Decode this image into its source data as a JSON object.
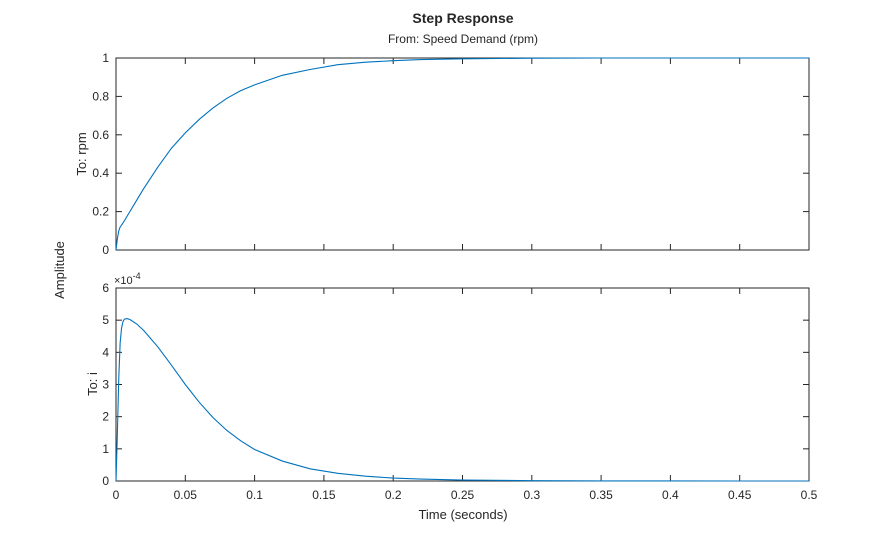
{
  "chart_data": {
    "type": "line",
    "title": "Step Response",
    "subtitle": "From: Speed Demand (rpm)",
    "xlabel": "Time (seconds)",
    "ylabel": "Amplitude",
    "xlim": [
      0,
      0.5
    ],
    "xticks": [
      "0",
      "0.05",
      "0.1",
      "0.15",
      "0.2",
      "0.25",
      "0.3",
      "0.35",
      "0.4",
      "0.45",
      "0.5"
    ],
    "grid": false,
    "subplots": [
      {
        "ylabel": "To: rpm",
        "ylim": [
          0,
          1
        ],
        "yticks": [
          "0",
          "0.2",
          "0.4",
          "0.6",
          "0.8",
          "1"
        ],
        "reference_line": 1,
        "x": [
          0,
          0.001,
          0.002,
          0.003,
          0.004,
          0.005,
          0.01,
          0.015,
          0.02,
          0.03,
          0.04,
          0.05,
          0.06,
          0.07,
          0.08,
          0.09,
          0.1,
          0.12,
          0.14,
          0.16,
          0.18,
          0.2,
          0.22,
          0.25,
          0.3,
          0.35,
          0.4,
          0.45,
          0.5
        ],
        "y": [
          0,
          0.06,
          0.1,
          0.12,
          0.13,
          0.14,
          0.2,
          0.26,
          0.32,
          0.43,
          0.53,
          0.61,
          0.68,
          0.74,
          0.79,
          0.83,
          0.86,
          0.91,
          0.94,
          0.965,
          0.978,
          0.986,
          0.992,
          0.996,
          0.999,
          1,
          1,
          1,
          1
        ]
      },
      {
        "ylabel": "To: i",
        "ylim": [
          0,
          6
        ],
        "yticks": [
          "0",
          "1",
          "2",
          "3",
          "4",
          "5",
          "6"
        ],
        "exponent_prefix": "×10",
        "exponent_power": "-4",
        "reference_line": 0,
        "x": [
          0,
          0.001,
          0.002,
          0.003,
          0.004,
          0.005,
          0.006,
          0.008,
          0.01,
          0.015,
          0.02,
          0.03,
          0.04,
          0.05,
          0.06,
          0.07,
          0.08,
          0.09,
          0.1,
          0.12,
          0.14,
          0.16,
          0.18,
          0.2,
          0.22,
          0.25,
          0.3,
          0.35,
          0.4,
          0.45,
          0.5
        ],
        "y": [
          0,
          1.5,
          3.2,
          4.3,
          4.75,
          4.95,
          5.03,
          5.05,
          5.02,
          4.88,
          4.68,
          4.18,
          3.6,
          3.0,
          2.45,
          1.97,
          1.57,
          1.25,
          0.98,
          0.62,
          0.38,
          0.24,
          0.15,
          0.09,
          0.06,
          0.03,
          0.01,
          0.003,
          0.001,
          0,
          0
        ]
      }
    ]
  }
}
